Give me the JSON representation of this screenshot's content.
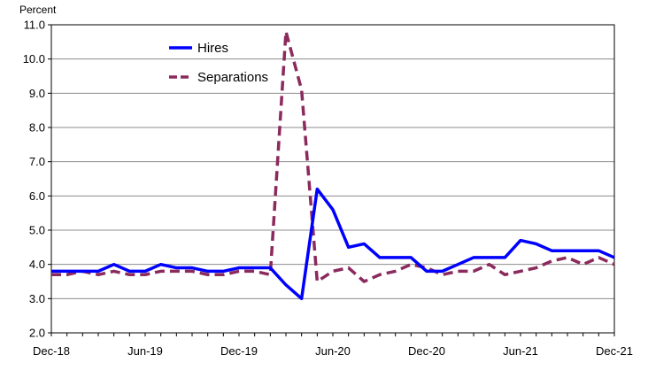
{
  "chart_data": {
    "type": "line",
    "title": "",
    "xlabel": "",
    "ylabel": "Percent",
    "ylim": [
      2.0,
      11.0
    ],
    "yticks": [
      "2.0",
      "3.0",
      "4.0",
      "5.0",
      "6.0",
      "7.0",
      "8.0",
      "9.0",
      "10.0",
      "11.0"
    ],
    "xticks": [
      {
        "label": "Dec-18",
        "index": 0
      },
      {
        "label": "Jun-19",
        "index": 6
      },
      {
        "label": "Dec-19",
        "index": 12
      },
      {
        "label": "Jun-20",
        "index": 18
      },
      {
        "label": "Dec-20",
        "index": 24
      },
      {
        "label": "Jun-21",
        "index": 30
      },
      {
        "label": "Dec-21",
        "index": 36
      }
    ],
    "x": [
      "2018-12",
      "2019-01",
      "2019-02",
      "2019-03",
      "2019-04",
      "2019-05",
      "2019-06",
      "2019-07",
      "2019-08",
      "2019-09",
      "2019-10",
      "2019-11",
      "2019-12",
      "2020-01",
      "2020-02",
      "2020-03",
      "2020-04",
      "2020-05",
      "2020-06",
      "2020-07",
      "2020-08",
      "2020-09",
      "2020-10",
      "2020-11",
      "2020-12",
      "2021-01",
      "2021-02",
      "2021-03",
      "2021-04",
      "2021-05",
      "2021-06",
      "2021-07",
      "2021-08",
      "2021-09",
      "2021-10",
      "2021-11",
      "2021-12"
    ],
    "grid": true,
    "legend_position": "top-center",
    "series": [
      {
        "name": "Hires",
        "color": "#0000ff",
        "style": "solid",
        "values": [
          3.8,
          3.8,
          3.8,
          3.8,
          4.0,
          3.8,
          3.8,
          4.0,
          3.9,
          3.9,
          3.8,
          3.8,
          3.9,
          3.9,
          3.9,
          3.4,
          3.0,
          6.2,
          5.6,
          4.5,
          4.6,
          4.2,
          4.2,
          4.2,
          3.8,
          3.8,
          4.0,
          4.2,
          4.2,
          4.2,
          4.7,
          4.6,
          4.4,
          4.4,
          4.4,
          4.4,
          4.2
        ]
      },
      {
        "name": "Separations",
        "color": "#8b2a5d",
        "style": "dashed",
        "values": [
          3.7,
          3.7,
          3.8,
          3.7,
          3.8,
          3.7,
          3.7,
          3.8,
          3.8,
          3.8,
          3.7,
          3.7,
          3.8,
          3.8,
          3.7,
          10.8,
          9.1,
          3.5,
          3.8,
          3.9,
          3.5,
          3.7,
          3.8,
          4.0,
          3.9,
          3.7,
          3.8,
          3.8,
          4.0,
          3.7,
          3.8,
          3.9,
          4.1,
          4.2,
          4.0,
          4.2,
          4.0
        ]
      }
    ]
  }
}
